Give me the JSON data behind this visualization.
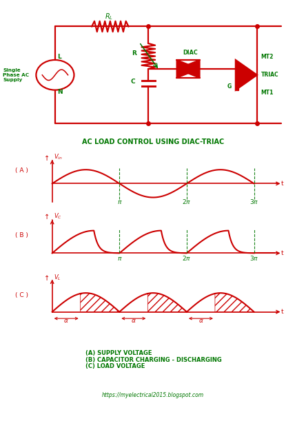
{
  "bg_color": "#ffffff",
  "red": "#cc0000",
  "green": "#007700",
  "title": "AC LOAD CONTROL USING DIAC-TRIAC",
  "legend_a": "(A) SUPPLY VOLTAGE",
  "legend_b": "(B) CAPACITOR CHARGING - DISCHARGING",
  "legend_c": "(C) LOAD VOLTAGE",
  "url": "https://myelectrical2015.blogspot.com",
  "circuit_title_fontsize": 7,
  "legend_fontsize": 6,
  "url_fontsize": 5.5
}
